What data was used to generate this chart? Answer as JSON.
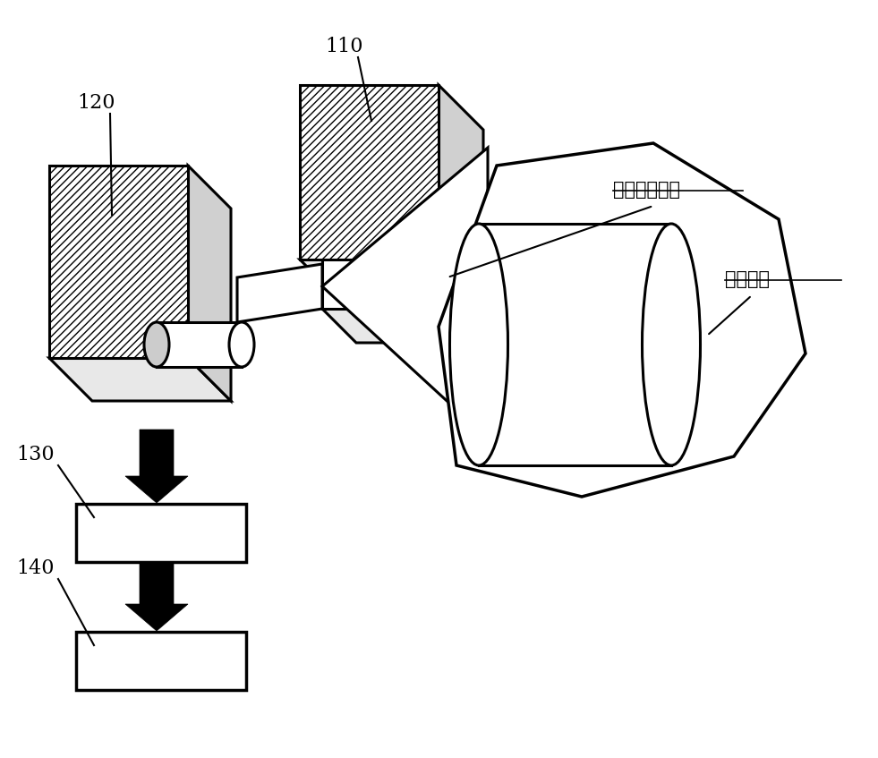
{
  "bg_color": "#ffffff",
  "label_110": "110",
  "label_120": "120",
  "label_130": "130",
  "label_140": "140",
  "label_ray": "射线照射区域",
  "label_luggage": "行李物品",
  "fig_width": 9.81,
  "fig_height": 8.47,
  "dpi": 100,
  "black": "#000000"
}
